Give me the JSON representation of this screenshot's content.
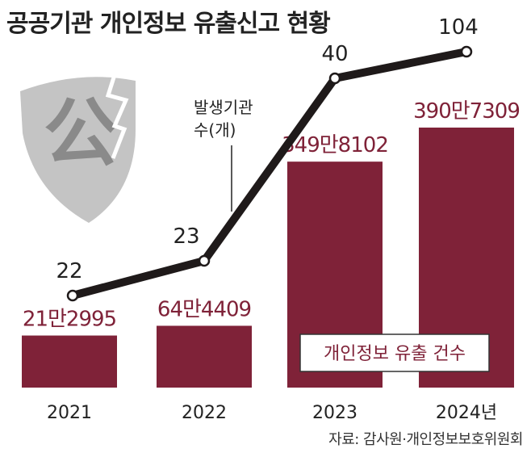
{
  "title": "공공기관 개인정보 유출신고 현황",
  "source": "자료: 감사원·개인정보보호위원회",
  "colors": {
    "bar": "#7f2238",
    "bar_label": "#7f2238",
    "line": "#1f1a1a",
    "shield": "#c4c4c4",
    "emblem": "#8a8a8a",
    "text": "#222222"
  },
  "icons": {
    "shield": "broken-shield-icon",
    "emblem_text": "公"
  },
  "chart_data": {
    "type": "bar",
    "categories": [
      "2021",
      "2022",
      "2023",
      "2024년"
    ],
    "series": [
      {
        "name": "개인정보 유출 건수",
        "values": [
          212995,
          644409,
          3498102,
          3907309
        ],
        "labels": [
          "21만2995",
          "64만4409",
          "349만8102",
          "390만7309"
        ]
      },
      {
        "name": "발생기관 수(개)",
        "type": "line",
        "values": [
          22,
          23,
          40,
          104
        ],
        "labels": [
          "22",
          "23",
          "40",
          "104"
        ]
      }
    ],
    "legend": "inline callouts",
    "grid": false
  }
}
